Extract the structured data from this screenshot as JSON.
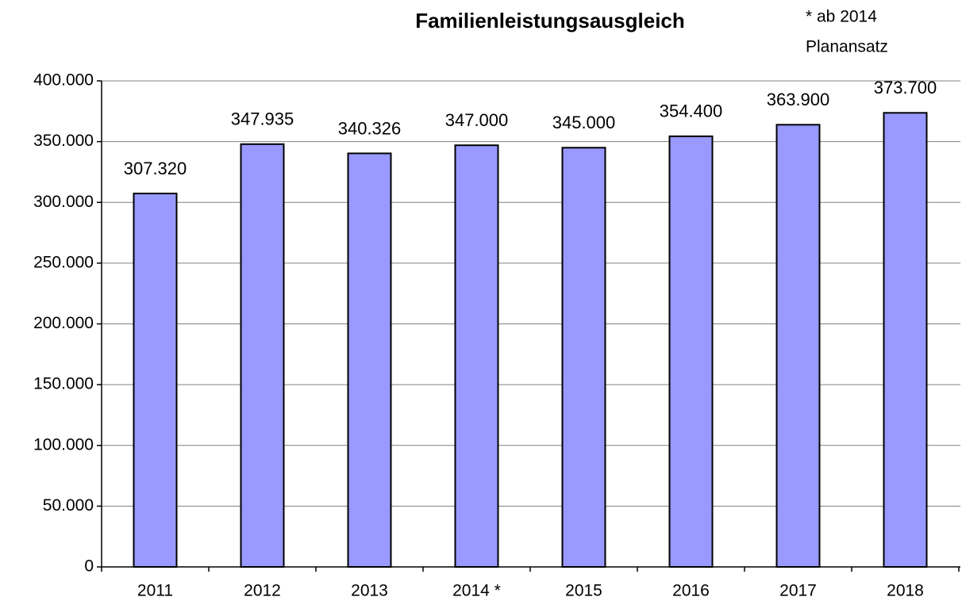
{
  "chart_data": {
    "type": "bar",
    "title": "Familienleistungsausgleich",
    "annotation": [
      "* ab 2014",
      "Planansatz"
    ],
    "categories": [
      "2011",
      "2012",
      "2013",
      "2014 *",
      "2015",
      "2016",
      "2017",
      "2018"
    ],
    "values": [
      307320,
      347935,
      340326,
      347000,
      345000,
      354400,
      363900,
      373700
    ],
    "value_labels": [
      "307.320",
      "347.935",
      "340.326",
      "347.000",
      "345.000",
      "354.400",
      "363.900",
      "373.700"
    ],
    "color": "#9999ff",
    "ylim": [
      0,
      400000
    ],
    "yticks": [
      0,
      {
        "value": 50000,
        "label": "50.000"
      },
      {
        "value": 100000,
        "label": "100.000"
      },
      {
        "value": 150000,
        "label": "150.000"
      },
      {
        "value": 200000,
        "label": "200.000"
      },
      {
        "value": 250000,
        "label": "250.000"
      },
      {
        "value": 300000,
        "label": "300.000"
      },
      {
        "value": 350000,
        "label": "350.000"
      },
      {
        "value": 400000,
        "label": "400.000"
      }
    ],
    "grid": true
  }
}
